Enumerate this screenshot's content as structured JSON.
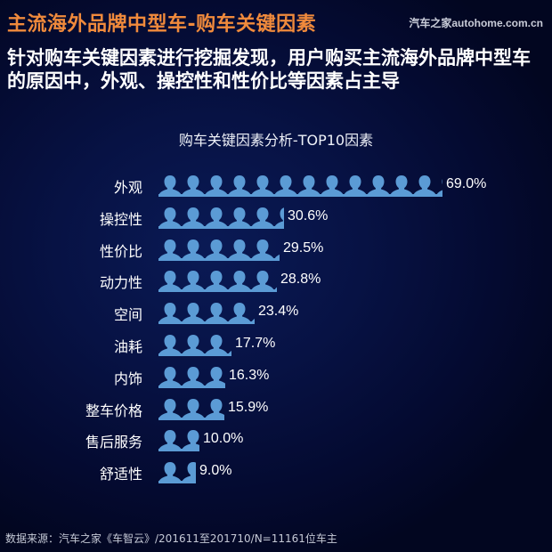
{
  "header": {
    "title": "主流海外品牌中型车-购车关键因素",
    "brand": "汽车之家autohome.com.cn",
    "subtitle": "针对购车关键因素进行挖掘发现，用户购买主流海外品牌中型车的原因中，外观、操控性和性价比等因素占主导"
  },
  "colors": {
    "title": "#f08a3c",
    "bar": "#5b9bd5",
    "background": "#071244"
  },
  "chart_data": {
    "type": "bar",
    "orientation": "horizontal",
    "title": "购车关键因素分析-TOP10因素",
    "xlabel": "",
    "ylabel": "",
    "categories": [
      "外观",
      "操控性",
      "性价比",
      "动力性",
      "空间",
      "油耗",
      "内饰",
      "整车价格",
      "售后服务",
      "舒适性"
    ],
    "values": [
      69.0,
      30.6,
      29.5,
      28.8,
      23.4,
      17.7,
      16.3,
      15.9,
      10.0,
      9.0
    ],
    "value_labels": [
      "69.0%",
      "30.6%",
      "29.5%",
      "28.8%",
      "23.4%",
      "17.7%",
      "16.3%",
      "15.9%",
      "10.0%",
      "9.0%"
    ],
    "unit": "%",
    "bar_style": "pictograph-person-icons",
    "grid": false,
    "legend": null
  },
  "footer": {
    "source": "数据来源：汽车之家《车智云》/201611至201710/N=11161位车主"
  }
}
